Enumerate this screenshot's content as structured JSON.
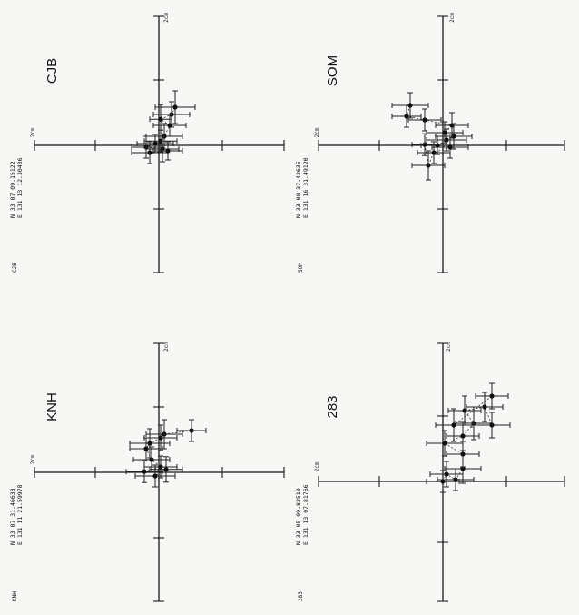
{
  "chart_data": [
    {
      "type": "scatter",
      "station": "CJB",
      "station_code": "CJB",
      "coord_lat": "N 33 07 09.15122",
      "coord_lon": "E 131 13 12.30436",
      "scale_label": "2cm",
      "scale_label_x": "2cm",
      "points": [
        {
          "x": 0.45,
          "y": 1.05,
          "ex": 0.55,
          "ey": 0.45
        },
        {
          "x": 0.35,
          "y": 0.85,
          "ex": 0.5,
          "ey": 0.35
        },
        {
          "x": 0.05,
          "y": 0.72,
          "ex": 0.3,
          "ey": 0.4
        },
        {
          "x": 0.3,
          "y": 0.55,
          "ex": 0.45,
          "ey": 0.3
        },
        {
          "x": 0.15,
          "y": 0.25,
          "ex": 0.5,
          "ey": 0.35
        },
        {
          "x": 0.05,
          "y": 0.12,
          "ex": 0.45,
          "ey": 0.3
        },
        {
          "x": -0.1,
          "y": 0.05,
          "ex": 0.5,
          "ey": 0.25
        },
        {
          "x": -0.35,
          "y": -0.05,
          "ex": 0.4,
          "ey": 0.3
        },
        {
          "x": 0.1,
          "y": -0.1,
          "ex": 0.45,
          "ey": 0.35
        },
        {
          "x": -0.25,
          "y": -0.2,
          "ex": 0.5,
          "ey": 0.3
        },
        {
          "x": 0.25,
          "y": -0.15,
          "ex": 0.4,
          "ey": 0.25
        }
      ]
    },
    {
      "type": "scatter",
      "station": "SOM",
      "station_code": "SOM",
      "coord_lat": "N 33 08 37.42635",
      "coord_lon": "E 131 16 31.49120",
      "scale_label": "2cm",
      "scale_label_x": "2cm",
      "points": [
        {
          "x": -0.9,
          "y": 1.1,
          "ex": 0.5,
          "ey": 0.35
        },
        {
          "x": -1.0,
          "y": 0.8,
          "ex": 0.4,
          "ey": 0.3
        },
        {
          "x": -0.5,
          "y": 0.7,
          "ex": 0.45,
          "ey": 0.3
        },
        {
          "x": 0.25,
          "y": 0.55,
          "ex": 0.45,
          "ey": 0.35
        },
        {
          "x": 0.05,
          "y": 0.35,
          "ex": 0.5,
          "ey": 0.3
        },
        {
          "x": 0.3,
          "y": 0.25,
          "ex": 0.5,
          "ey": 0.35
        },
        {
          "x": 0.1,
          "y": 0.15,
          "ex": 0.55,
          "ey": 0.3
        },
        {
          "x": -0.15,
          "y": 0.0,
          "ex": 0.45,
          "ey": 0.25
        },
        {
          "x": 0.2,
          "y": -0.05,
          "ex": 0.5,
          "ey": 0.3
        },
        {
          "x": -0.25,
          "y": -0.2,
          "ex": 0.45,
          "ey": 0.3
        },
        {
          "x": -0.4,
          "y": -0.55,
          "ex": 0.45,
          "ey": 0.4
        },
        {
          "x": -0.5,
          "y": 0.02,
          "ex": 0.35,
          "ey": 0.3
        }
      ]
    },
    {
      "type": "scatter",
      "station": "KNH",
      "station_code": "KNH",
      "coord_lat": "N 33 07 31.46633",
      "coord_lon": "E 131 11 21.59978",
      "scale_label": "2cm",
      "scale_label_x": "2cm",
      "points": [
        {
          "x": 0.9,
          "y": 1.15,
          "ex": 0.4,
          "ey": 0.3
        },
        {
          "x": 0.15,
          "y": 1.05,
          "ex": 0.5,
          "ey": 0.4
        },
        {
          "x": 0.05,
          "y": 0.95,
          "ex": 0.45,
          "ey": 0.35
        },
        {
          "x": -0.25,
          "y": 0.8,
          "ex": 0.55,
          "ey": 0.4
        },
        {
          "x": -0.35,
          "y": 0.65,
          "ex": 0.45,
          "ey": 0.3
        },
        {
          "x": -0.2,
          "y": 0.35,
          "ex": 0.5,
          "ey": 0.35
        },
        {
          "x": 0.05,
          "y": 0.15,
          "ex": 0.45,
          "ey": 0.3
        },
        {
          "x": -0.4,
          "y": 0.02,
          "ex": 0.5,
          "ey": 0.3
        },
        {
          "x": 0.2,
          "y": 0.08,
          "ex": 0.45,
          "ey": 0.35
        },
        {
          "x": -0.1,
          "y": -0.1,
          "ex": 0.55,
          "ey": 0.3
        }
      ]
    },
    {
      "type": "scatter",
      "station": "283",
      "station_code": "283",
      "coord_lat": "N 33 05 09.82510",
      "coord_lon": "E 131 13 07.81766",
      "scale_label": "2cm",
      "scale_label_x": "2cm",
      "points": [
        {
          "x": 0.0,
          "y": 0.0,
          "ex": 0.45,
          "ey": 0.3
        },
        {
          "x": 0.1,
          "y": 0.2,
          "ex": 0.45,
          "ey": 0.35
        },
        {
          "x": 0.35,
          "y": 0.05,
          "ex": 0.5,
          "ey": 0.3
        },
        {
          "x": 0.55,
          "y": 0.35,
          "ex": 0.5,
          "ey": 0.4
        },
        {
          "x": 0.55,
          "y": 0.75,
          "ex": 0.45,
          "ey": 0.35
        },
        {
          "x": 0.05,
          "y": 1.05,
          "ex": 0.5,
          "ey": 0.35
        },
        {
          "x": 0.55,
          "y": 1.25,
          "ex": 0.45,
          "ey": 0.4
        },
        {
          "x": 0.85,
          "y": 1.6,
          "ex": 0.5,
          "ey": 0.45
        },
        {
          "x": 0.6,
          "y": 1.95,
          "ex": 0.45,
          "ey": 0.4
        },
        {
          "x": 1.15,
          "y": 2.05,
          "ex": 0.5,
          "ey": 0.4
        },
        {
          "x": 1.35,
          "y": 1.55,
          "ex": 0.5,
          "ey": 0.35
        },
        {
          "x": 0.3,
          "y": 1.55,
          "ex": 0.5,
          "ey": 0.45
        },
        {
          "x": 1.35,
          "y": 2.35,
          "ex": 0.45,
          "ey": 0.35
        }
      ]
    }
  ]
}
